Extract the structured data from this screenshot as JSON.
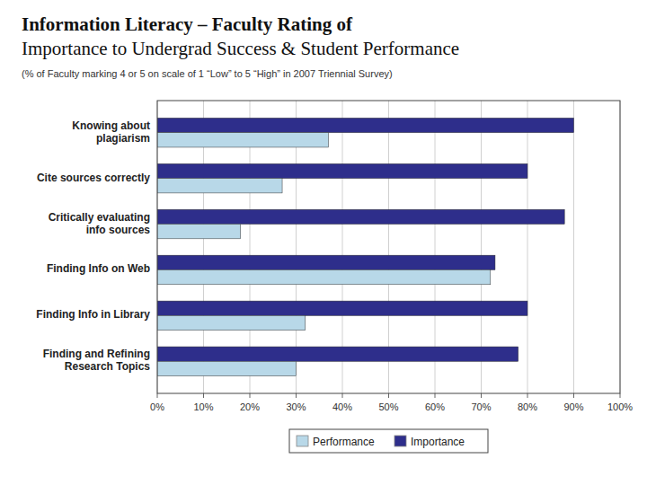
{
  "chart_data": {
    "type": "bar",
    "orientation": "horizontal",
    "title": "Information Literacy – Faculty Rating of\nImportance to Undergrad Success & Student Performance",
    "subtitle": "(% of Faculty  marking 4 or 5 on scale of 1 “Low” to 5 “High” in 2007 Triennial Survey)",
    "categories": [
      "Finding and Refining\nResearch Topics",
      "Finding Info in Library",
      "Finding Info on Web",
      "Critically evaluating\ninfo sources",
      "Cite sources correctly",
      "Knowing about\nplagiarism"
    ],
    "series": [
      {
        "name": "Importance",
        "color": "#2E2E8B",
        "values": [
          78,
          80,
          73,
          88,
          80,
          90
        ]
      },
      {
        "name": "Performance",
        "color": "#B8D8E8",
        "values": [
          30,
          32,
          72,
          18,
          27,
          37
        ]
      }
    ],
    "xlim": [
      0,
      100
    ],
    "xticks": [
      {
        "value": 0,
        "label": "0%"
      },
      {
        "value": 10,
        "label": "10%"
      },
      {
        "value": 20,
        "label": "20%"
      },
      {
        "value": 30,
        "label": "30%"
      },
      {
        "value": 40,
        "label": "40%"
      },
      {
        "value": 50,
        "label": "50%"
      },
      {
        "value": 60,
        "label": "60%"
      },
      {
        "value": 70,
        "label": "70%"
      },
      {
        "value": 80,
        "label": "80%"
      },
      {
        "value": 90,
        "label": "90%"
      },
      {
        "value": 100,
        "label": "100%"
      }
    ],
    "grid": true,
    "legend": "bottom"
  }
}
